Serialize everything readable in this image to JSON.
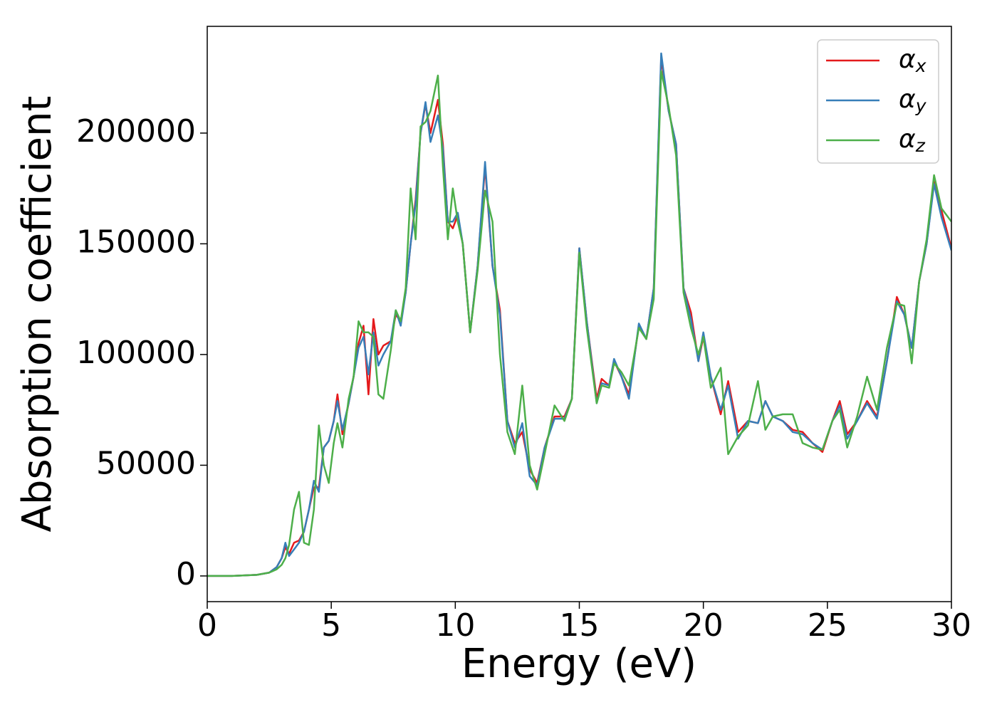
{
  "chart_data": {
    "type": "line",
    "xlabel": "Energy (eV)",
    "ylabel": "Absorption coefficient",
    "x": [
      0,
      1,
      2,
      2.5,
      2.8,
      3.0,
      3.15,
      3.3,
      3.5,
      3.7,
      3.9,
      4.1,
      4.3,
      4.5,
      4.7,
      4.9,
      5.1,
      5.25,
      5.45,
      5.7,
      5.9,
      6.1,
      6.3,
      6.5,
      6.7,
      6.9,
      7.1,
      7.4,
      7.6,
      7.8,
      8.0,
      8.2,
      8.4,
      8.6,
      8.8,
      9.0,
      9.3,
      9.5,
      9.7,
      9.9,
      10.1,
      10.3,
      10.6,
      10.9,
      11.2,
      11.5,
      11.8,
      12.1,
      12.4,
      12.7,
      13.0,
      13.3,
      13.6,
      14.0,
      14.4,
      14.7,
      15.0,
      15.3,
      15.7,
      15.9,
      16.2,
      16.4,
      16.7,
      17.0,
      17.4,
      17.7,
      18.0,
      18.3,
      18.6,
      18.9,
      19.2,
      19.5,
      19.8,
      20.0,
      20.3,
      20.7,
      21.0,
      21.4,
      21.8,
      22.2,
      22.5,
      22.8,
      23.2,
      23.6,
      24.0,
      24.4,
      24.8,
      25.2,
      25.5,
      25.8,
      26.2,
      26.6,
      27.0,
      27.4,
      27.8,
      28.1,
      28.4,
      28.7,
      29.0,
      29.3,
      29.6,
      30.0
    ],
    "series": [
      {
        "name": "αx",
        "color": "#e41a1c",
        "values": [
          0,
          0,
          500,
          1500,
          4000,
          8000,
          13000,
          10000,
          15000,
          16000,
          20000,
          30000,
          40000,
          40000,
          58000,
          61000,
          70000,
          82000,
          64000,
          78000,
          90000,
          105000,
          113000,
          82000,
          116000,
          100000,
          104000,
          106000,
          118000,
          115000,
          128000,
          150000,
          170000,
          200000,
          213000,
          200000,
          215000,
          195000,
          160000,
          157000,
          163000,
          150000,
          110000,
          140000,
          185000,
          140000,
          120000,
          70000,
          60000,
          65000,
          48000,
          42000,
          58000,
          72000,
          72000,
          80000,
          148000,
          115000,
          80000,
          89000,
          86000,
          97000,
          90000,
          82000,
          113000,
          107000,
          130000,
          234000,
          210000,
          195000,
          130000,
          119000,
          97000,
          108000,
          90000,
          73000,
          88000,
          65000,
          70000,
          69000,
          79000,
          72000,
          70000,
          66000,
          65000,
          60000,
          56000,
          70000,
          79000,
          64000,
          70000,
          79000,
          72000,
          97000,
          126000,
          118000,
          103000,
          133000,
          150000,
          178000,
          165000,
          148000
        ]
      },
      {
        "name": "αy",
        "color": "#377eb8",
        "values": [
          0,
          0,
          500,
          1500,
          4000,
          8000,
          15000,
          9000,
          12000,
          15000,
          20000,
          30000,
          43000,
          38000,
          58000,
          61000,
          70000,
          79000,
          66000,
          78000,
          90000,
          103000,
          108000,
          91000,
          110000,
          95000,
          100000,
          106000,
          120000,
          113000,
          128000,
          150000,
          168000,
          200000,
          214000,
          196000,
          208000,
          193000,
          160000,
          160000,
          164000,
          150000,
          110000,
          140000,
          187000,
          140000,
          118000,
          70000,
          58000,
          69000,
          45000,
          41000,
          58000,
          71000,
          71000,
          80000,
          148000,
          115000,
          78000,
          87000,
          86000,
          98000,
          90000,
          80000,
          114000,
          107000,
          130000,
          236000,
          210000,
          195000,
          130000,
          116000,
          97000,
          110000,
          90000,
          75000,
          86000,
          62000,
          70000,
          69000,
          79000,
          72000,
          70000,
          65000,
          64000,
          60000,
          57000,
          70000,
          77000,
          62000,
          70000,
          78000,
          71000,
          97000,
          124000,
          118000,
          103000,
          133000,
          150000,
          177000,
          162000,
          147000
        ]
      },
      {
        "name": "αz",
        "color": "#4daf4a",
        "values": [
          0,
          0,
          500,
          1500,
          3000,
          5000,
          8000,
          14000,
          30000,
          38000,
          15000,
          14000,
          30000,
          68000,
          50000,
          42000,
          60000,
          69000,
          58000,
          80000,
          90000,
          115000,
          110000,
          110000,
          108000,
          82000,
          80000,
          102000,
          120000,
          115000,
          130000,
          175000,
          152000,
          203000,
          205000,
          210000,
          226000,
          185000,
          152000,
          175000,
          160000,
          150000,
          110000,
          138000,
          174000,
          160000,
          100000,
          65000,
          55000,
          86000,
          50000,
          39000,
          55000,
          77000,
          70000,
          80000,
          146000,
          112000,
          78000,
          86000,
          85000,
          96000,
          92000,
          86000,
          112000,
          107000,
          125000,
          228000,
          212000,
          190000,
          128000,
          112000,
          100000,
          108000,
          85000,
          94000,
          55000,
          63000,
          68000,
          88000,
          66000,
          72000,
          73000,
          73000,
          60000,
          58000,
          57000,
          70000,
          75000,
          58000,
          72000,
          90000,
          75000,
          103000,
          123000,
          122000,
          96000,
          133000,
          152000,
          181000,
          166000,
          160000
        ]
      }
    ],
    "xlim": [
      0,
      30
    ],
    "xticks": [
      0,
      5,
      10,
      15,
      20,
      25,
      30
    ],
    "ylim": [
      -11600,
      248200
    ],
    "yticks": [
      0,
      50000,
      100000,
      150000,
      200000
    ],
    "legend": "upper right",
    "grid": false
  }
}
